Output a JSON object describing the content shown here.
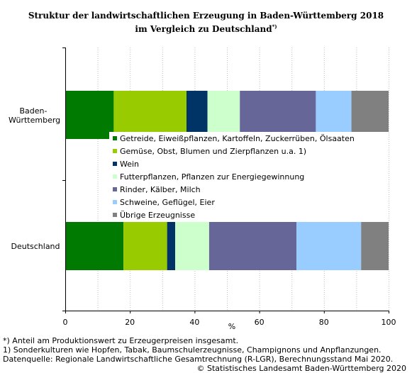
{
  "title_line1": "Struktur der landwirtschaftlichen Erzeugung in Baden-Württemberg 2018",
  "title_line2": "im Vergleich zu Deutschland",
  "title_sup": "*)",
  "chart_data": {
    "type": "bar",
    "orientation": "horizontal",
    "stacked": true,
    "categories": [
      "Baden-Württemberg",
      "Deutschland"
    ],
    "xlabel": "%",
    "xlim": [
      0,
      100
    ],
    "xticks": [
      "0",
      "20",
      "40",
      "60",
      "80",
      "100"
    ],
    "grid": "vertical dotted",
    "legend_position": "center",
    "series": [
      {
        "name": "Getreide, Eiweißpflanzen, Kartoffeln, Zuckerrüben, Ölsaaten",
        "color": "#007a00",
        "values": [
          15.0,
          18.0
        ]
      },
      {
        "name": "Gemüse, Obst, Blumen und Zierpflanzen u.a. 1)",
        "color": "#99cc00",
        "values": [
          22.5,
          13.5
        ]
      },
      {
        "name": "Wein",
        "color": "#003366",
        "values": [
          6.5,
          2.5
        ]
      },
      {
        "name": "Futterpflanzen, Pflanzen zur Energiegewinnung",
        "color": "#ccffcc",
        "values": [
          10.0,
          10.5
        ]
      },
      {
        "name": "Rinder, Kälber, Milch",
        "color": "#666699",
        "values": [
          23.5,
          27.0
        ]
      },
      {
        "name": "Schweine, Geflügel, Eier",
        "color": "#99ccff",
        "values": [
          11.0,
          20.0
        ]
      },
      {
        "name": "Übrige Erzeugnisse",
        "color": "#808080",
        "values": [
          11.5,
          8.5
        ]
      }
    ]
  },
  "category_label_lines": [
    [
      "Baden-",
      "Württemberg"
    ],
    [
      "Deutschland"
    ]
  ],
  "footnotes": [
    "*) Anteil am Produktionswert zu Erzeugerpreisen insgesamt.",
    "1) Sonderkulturen wie Hopfen, Tabak, Baumschulerzeugnisse, Champignons und Anpflanzungen.",
    "Datenquelle: Regionale Landwirtschaftliche Gesamtrechnung (R-LGR), Berechnungsstand Mai 2020."
  ],
  "copyright": "© Statistisches Landesamt Baden-Württemberg 2020"
}
